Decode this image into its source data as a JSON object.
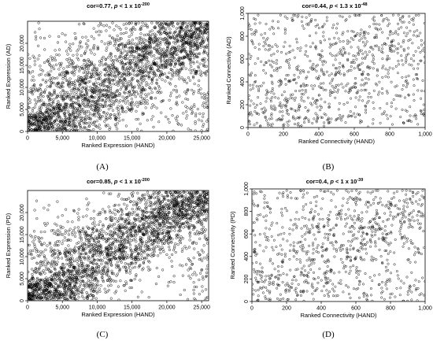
{
  "chart_data": [
    {
      "type": "scatter",
      "panel_label": "(A)",
      "title": {
        "prefix": "cor=0.77, ",
        "p": "p",
        "mid": " < 1 x 10",
        "exp": "-200"
      },
      "xlabel": "Ranked Expression (HAND)",
      "ylabel": "Ranked Expression (AD)",
      "xlim": [
        0,
        26000
      ],
      "ylim": [
        0,
        25000
      ],
      "xticks": [
        0,
        5000,
        10000,
        15000,
        20000,
        25000
      ],
      "xtick_labels": [
        "0",
        "5,000",
        "10,000",
        "15,000",
        "20,000",
        "25,000"
      ],
      "yticks": [
        0,
        5000,
        10000,
        15000,
        20000
      ],
      "ytick_labels": [
        "0",
        "5,000",
        "10,000",
        "15,000",
        "20,000"
      ],
      "correlation": 0.77,
      "n_points": 2600,
      "points": []
    },
    {
      "type": "scatter",
      "panel_label": "(B)",
      "title": {
        "prefix": "cor=0.44, ",
        "p": "p",
        "mid": " < 1.3 x 10",
        "exp": "-48"
      },
      "xlabel": "Ranked Connectivity (HAND)",
      "ylabel": "Ranked Connectivity (AD)",
      "xlim": [
        0,
        1000
      ],
      "ylim": [
        0,
        1000
      ],
      "xticks": [
        0,
        200,
        400,
        600,
        800,
        1000
      ],
      "xtick_labels": [
        "0",
        "200",
        "400",
        "600",
        "800",
        "1,000"
      ],
      "yticks": [
        0,
        200,
        400,
        600,
        800,
        1000
      ],
      "ytick_labels": [
        "0",
        "200",
        "400",
        "600",
        "800",
        "1,000"
      ],
      "correlation": 0.44,
      "n_points": 900,
      "points": []
    },
    {
      "type": "scatter",
      "panel_label": "(C)",
      "title": {
        "prefix": "cor=0.85, ",
        "p": "p",
        "mid": " < 1 x 10",
        "exp": "-200"
      },
      "xlabel": "Ranked Expression (HAND)",
      "ylabel": "Ranked Expression (PD)",
      "xlim": [
        0,
        26000
      ],
      "ylim": [
        0,
        25000
      ],
      "xticks": [
        0,
        5000,
        10000,
        15000,
        20000,
        25000
      ],
      "xtick_labels": [
        "0",
        "5,000",
        "10,000",
        "15,000",
        "20,000",
        "25,000"
      ],
      "yticks": [
        0,
        5000,
        10000,
        15000,
        20000
      ],
      "ytick_labels": [
        "0",
        "5,000",
        "10,000",
        "15,000",
        "20,000"
      ],
      "correlation": 0.85,
      "n_points": 2600,
      "points": []
    },
    {
      "type": "scatter",
      "panel_label": "(D)",
      "title": {
        "prefix": "cor=0.4, ",
        "p": "p",
        "mid": " < 1 x 10",
        "exp": "-39"
      },
      "xlabel": "Ranked Connectivity (HAND)",
      "ylabel": "Ranked Connectivity (PD)",
      "xlim": [
        0,
        1000
      ],
      "ylim": [
        0,
        1000
      ],
      "xticks": [
        0,
        200,
        400,
        600,
        800,
        1000
      ],
      "xtick_labels": [
        "0",
        "200",
        "400",
        "600",
        "800",
        "1,000"
      ],
      "yticks": [
        0,
        200,
        400,
        600,
        800,
        1000
      ],
      "ytick_labels": [
        "0",
        "200",
        "400",
        "600",
        "800",
        "1,000"
      ],
      "correlation": 0.4,
      "n_points": 900,
      "points": []
    }
  ]
}
